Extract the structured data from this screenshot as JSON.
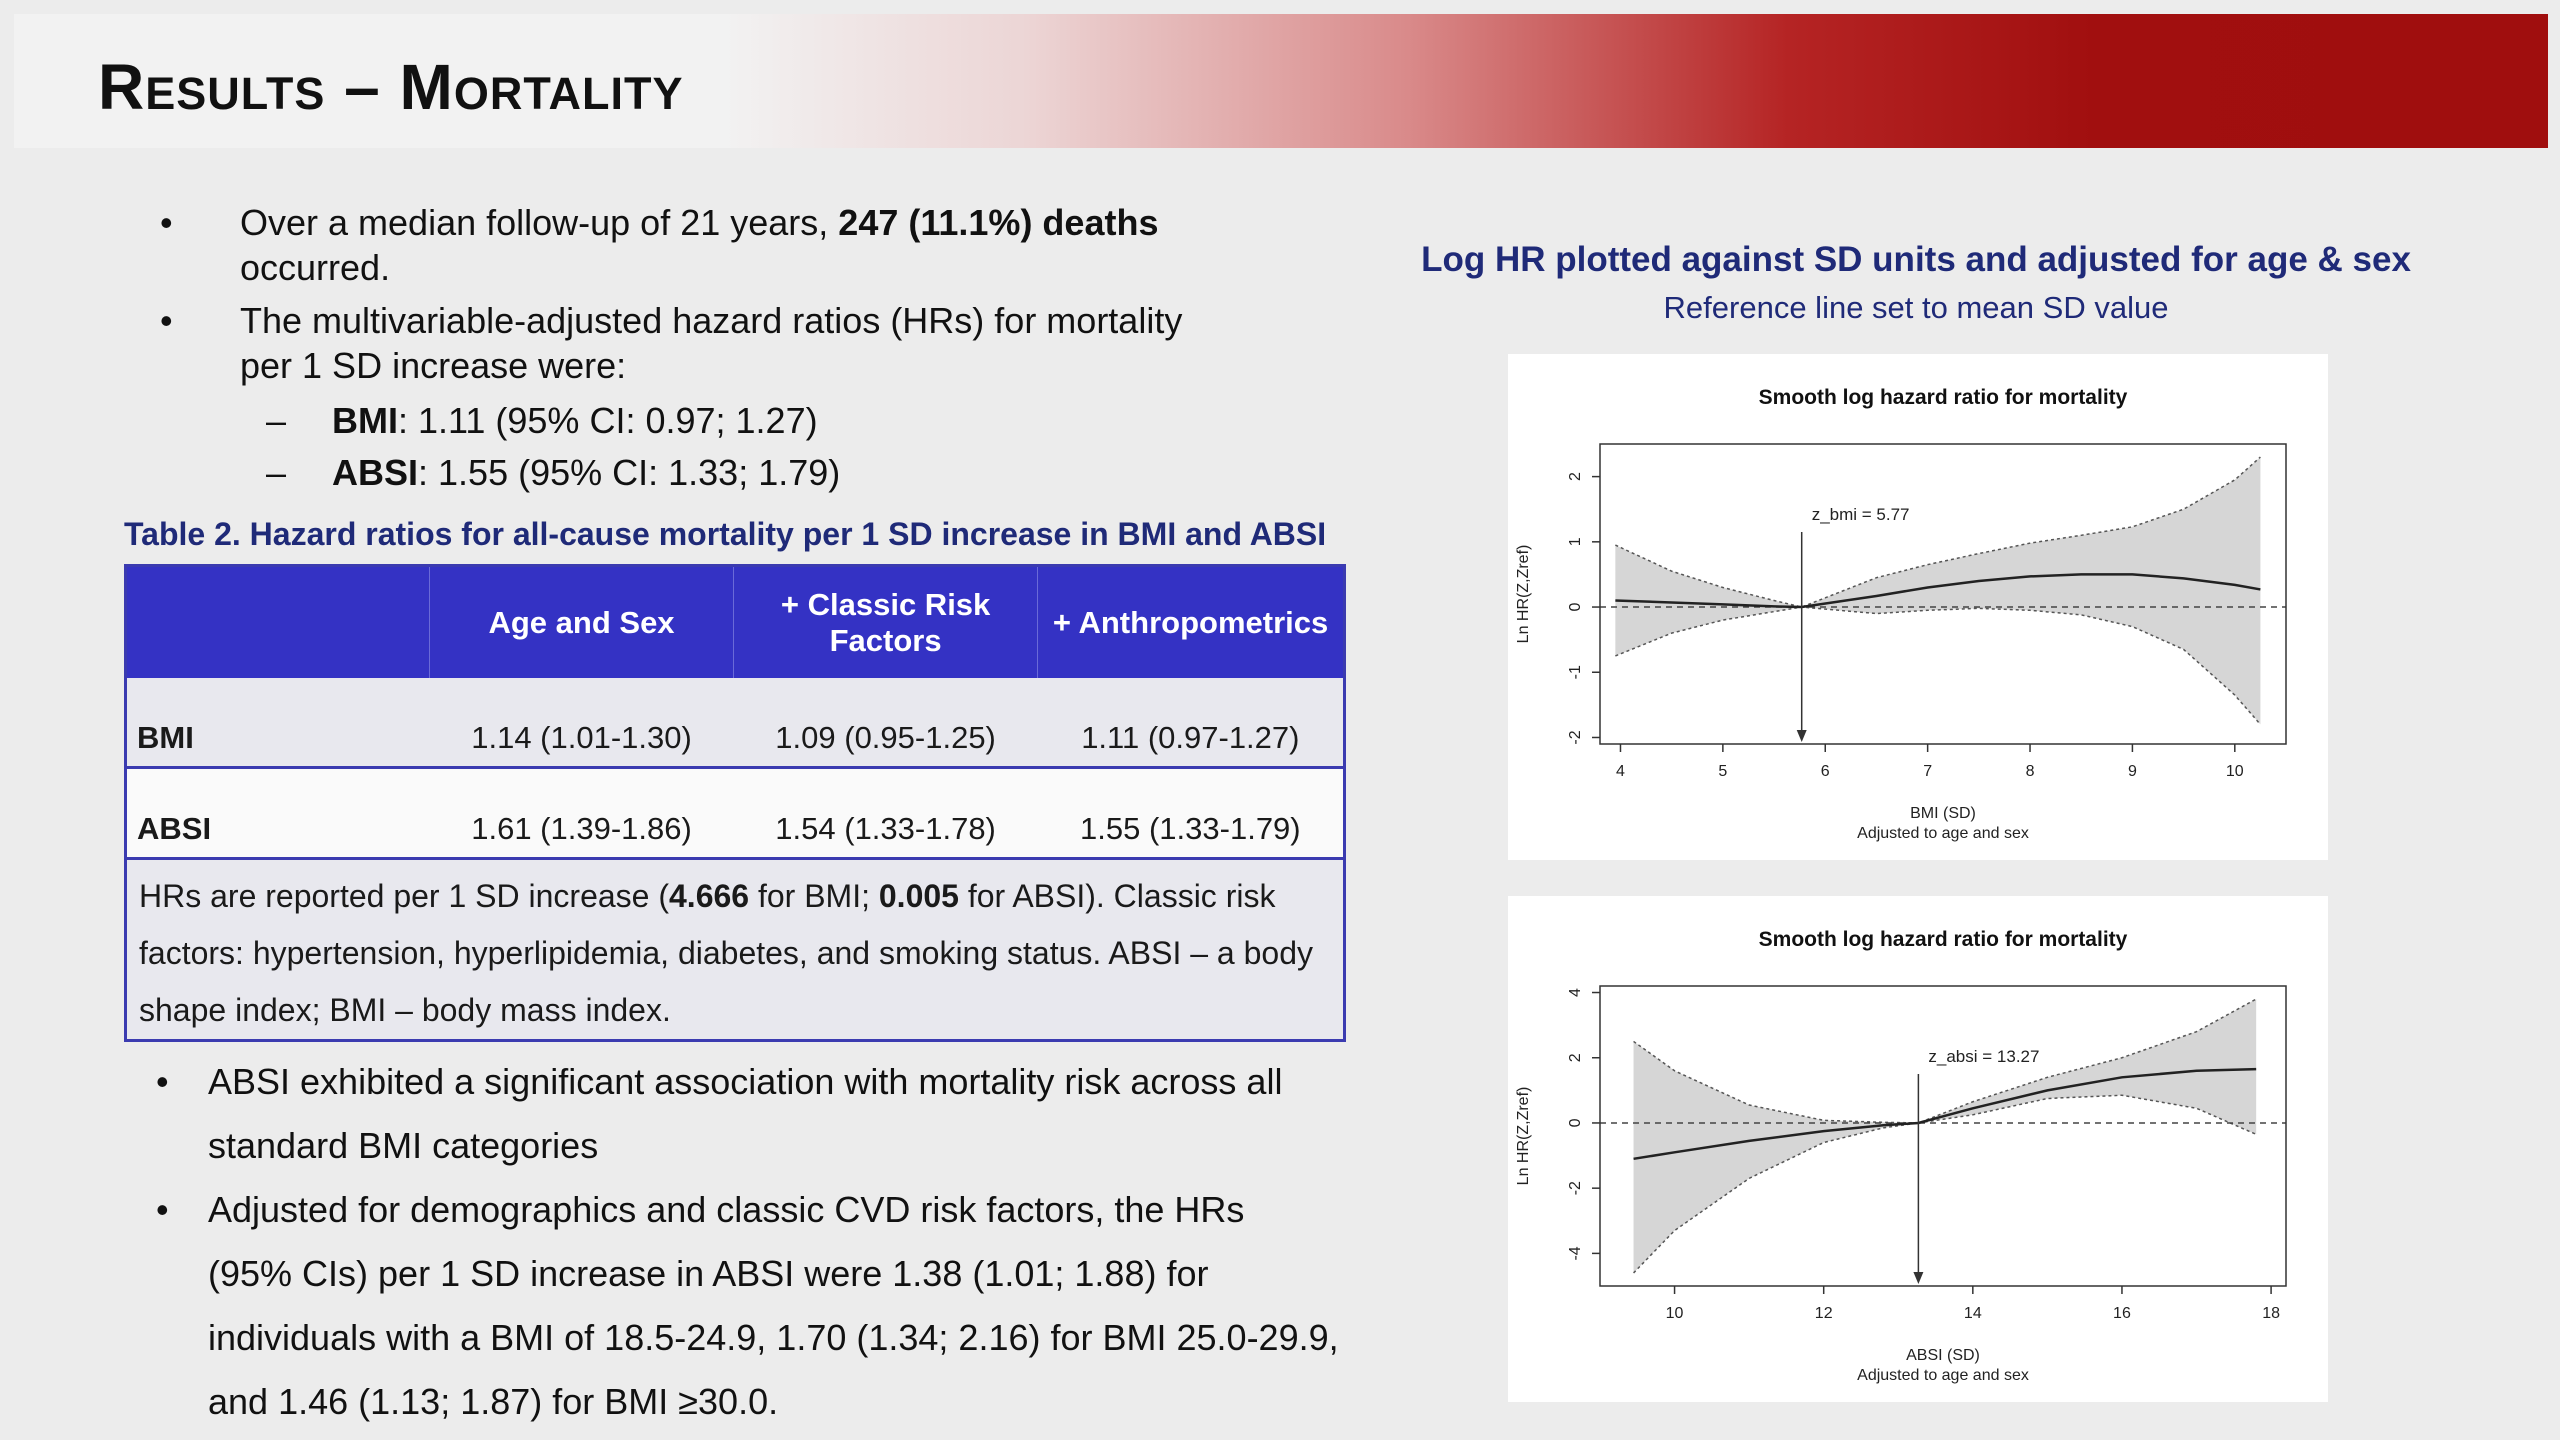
{
  "slide": {
    "title": "Results – Mortality"
  },
  "bullets_top": {
    "b1_pre": "Over a median follow-up of 21 years, ",
    "b1_bold": "247 (11.1%) deaths",
    "b1_line2": "occurred.",
    "b2_line1": "The multivariable-adjusted hazard ratios (HRs) for mortality",
    "b2_line2": "per 1 SD increase were:",
    "sub": [
      {
        "bold": "BMI",
        "text": ": 1.11 (95% CI: 0.97; 1.27)"
      },
      {
        "bold": "ABSI",
        "text": ": 1.55 (95% CI: 1.33; 1.79)"
      }
    ]
  },
  "table": {
    "caption": "Table 2. Hazard ratios for all-cause mortality per 1 SD increase in BMI and ABSI",
    "headers": [
      "",
      "Age and Sex",
      "+ Classic Risk Factors",
      "+ Anthropometrics"
    ],
    "rows": [
      {
        "label": "BMI",
        "values": [
          "1.14 (1.01-1.30)",
          "1.09 (0.95-1.25)",
          "1.11 (0.97-1.27)"
        ]
      },
      {
        "label": "ABSI",
        "values": [
          "1.61 (1.39-1.86)",
          "1.54 (1.33-1.78)",
          "1.55 (1.33-1.79)"
        ]
      }
    ],
    "note": {
      "t1": "HRs are reported per 1 SD increase (",
      "b1": "4.666",
      "t2": " for BMI; ",
      "b2": "0.005",
      "t3": " for ABSI). Classic risk factors: hypertension, hyperlipidemia, diabetes, and smoking status. ABSI – a body shape index; BMI – body mass index."
    }
  },
  "bullets_bottom": {
    "b3_line1": "ABSI exhibited a significant association with mortality risk across all",
    "b3_line2": "standard BMI categories",
    "b4_line1": "Adjusted for demographics and classic CVD risk factors, the HRs",
    "b4_line2": "(95% CIs) per 1 SD increase in ABSI were 1.38 (1.01; 1.88) for",
    "b4_line3": "individuals with a BMI of 18.5-24.9, 1.70 (1.34; 2.16) for BMI 25.0-29.9,",
    "b4_line4": "and 1.46 (1.13; 1.87) for BMI ≥30.0."
  },
  "right": {
    "title": "Log HR plotted against SD units and adjusted for age & sex",
    "subtitle": "Reference line set to mean SD value"
  },
  "bullet_glyph": "•",
  "dash_glyph": "–",
  "chart_data": [
    {
      "type": "line",
      "title": "Smooth log hazard ratio for mortality",
      "xlabel": "BMI (SD)",
      "xlabel2": "Adjusted to age and sex",
      "ylabel": "Ln HR(Z,Zref)",
      "xlim": [
        3.8,
        10.5
      ],
      "ylim": [
        -2.1,
        2.5
      ],
      "xticks": [
        4,
        5,
        6,
        7,
        8,
        9,
        10
      ],
      "yticks": [
        -2,
        -1,
        0,
        1,
        2
      ],
      "ref_x": 5.77,
      "ref_label": "z_bmi = 5.77",
      "x": [
        3.95,
        4.5,
        5.0,
        5.5,
        5.77,
        6.5,
        7.0,
        7.5,
        8.0,
        8.5,
        9.0,
        9.5,
        10.0,
        10.25
      ],
      "fit": [
        0.1,
        0.07,
        0.04,
        0.01,
        0.0,
        0.17,
        0.3,
        0.4,
        0.47,
        0.5,
        0.5,
        0.44,
        0.34,
        0.27
      ],
      "upper": [
        0.95,
        0.55,
        0.3,
        0.1,
        0.0,
        0.45,
        0.65,
        0.82,
        0.98,
        1.1,
        1.23,
        1.5,
        1.95,
        2.3
      ],
      "lower": [
        -0.75,
        -0.4,
        -0.2,
        -0.07,
        0.0,
        -0.1,
        -0.05,
        -0.02,
        -0.05,
        -0.12,
        -0.3,
        -0.65,
        -1.35,
        -1.8
      ]
    },
    {
      "type": "line",
      "title": "Smooth log hazard ratio for mortality",
      "xlabel": "ABSI (SD)",
      "xlabel2": "Adjusted to age and sex",
      "ylabel": "Ln HR(Z,Zref)",
      "xlim": [
        9.0,
        18.2
      ],
      "ylim": [
        -5.0,
        4.2
      ],
      "xticks": [
        10,
        12,
        14,
        16,
        18
      ],
      "yticks": [
        -4,
        -2,
        0,
        2,
        4
      ],
      "ref_x": 13.27,
      "ref_label": "z_absi = 13.27",
      "x": [
        9.45,
        10.0,
        11.0,
        12.0,
        12.8,
        13.27,
        14.0,
        15.0,
        16.0,
        17.0,
        17.8
      ],
      "fit": [
        -1.1,
        -0.9,
        -0.55,
        -0.25,
        -0.07,
        0.0,
        0.45,
        1.0,
        1.4,
        1.6,
        1.65
      ],
      "upper": [
        2.5,
        1.6,
        0.55,
        0.08,
        0.02,
        0.0,
        0.65,
        1.4,
        2.0,
        2.8,
        3.8
      ],
      "lower": [
        -4.6,
        -3.3,
        -1.7,
        -0.6,
        -0.15,
        0.0,
        0.25,
        0.75,
        0.85,
        0.45,
        -0.35
      ]
    }
  ]
}
